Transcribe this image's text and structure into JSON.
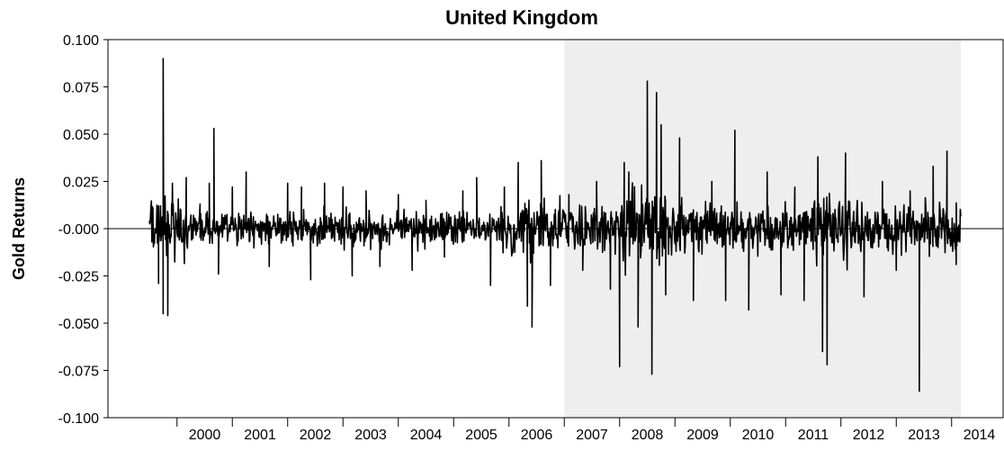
{
  "chart_data": {
    "type": "line",
    "title": "United Kingdom",
    "xlabel": "",
    "ylabel": "Gold Returns",
    "ylim": [
      -0.1,
      0.1
    ],
    "y_ticks": [
      "0.100",
      "0.075",
      "0.050",
      "0.025",
      "-0.000",
      "-0.025",
      "-0.050",
      "-0.075",
      "-0.100"
    ],
    "x_ticks": [
      "2000",
      "2001",
      "2002",
      "2003",
      "2004",
      "2005",
      "2006",
      "2007",
      "2008",
      "2009",
      "2010",
      "2011",
      "2012",
      "2013",
      "2014"
    ],
    "x_range": [
      "1999-07",
      "2014-03"
    ],
    "zero_line": true,
    "shaded_region": {
      "start": "2007-01",
      "end": "2014-03",
      "color": "#eeeeee"
    },
    "series_color": "#000000",
    "series": [
      {
        "x": [
          "1999-09",
          "1999-09",
          "1999-10",
          "1999-10",
          "1999-11",
          "1999-12",
          "2000-03",
          "2000-06",
          "2000-08",
          "2000-09",
          "2000-10",
          "2001-01",
          "2001-04",
          "2001-09",
          "2002-01",
          "2002-04",
          "2002-06",
          "2002-09",
          "2003-01",
          "2003-03",
          "2003-06",
          "2003-09",
          "2004-01",
          "2004-04",
          "2004-07",
          "2004-11",
          "2005-03",
          "2005-06",
          "2005-09",
          "2005-12",
          "2006-03",
          "2006-05",
          "2006-06",
          "2006-08",
          "2006-10",
          "2007-02",
          "2007-05",
          "2007-08",
          "2007-11",
          "2008-01",
          "2008-02",
          "2008-03",
          "2008-05",
          "2008-07",
          "2008-08",
          "2008-09",
          "2008-10",
          "2008-11",
          "2009-02",
          "2009-05",
          "2009-09",
          "2009-12",
          "2010-02",
          "2010-05",
          "2010-09",
          "2010-12",
          "2011-03",
          "2011-05",
          "2011-08",
          "2011-09",
          "2011-10",
          "2012-02",
          "2012-06",
          "2012-10",
          "2013-01",
          "2013-04",
          "2013-06",
          "2013-09",
          "2013-12",
          "2014-02"
        ],
        "values": [
          -0.029,
          0.012,
          -0.045,
          0.09,
          -0.046,
          0.024,
          0.027,
          0.013,
          0.024,
          0.053,
          -0.024,
          0.022,
          0.03,
          -0.02,
          0.024,
          0.022,
          -0.027,
          0.024,
          0.022,
          -0.025,
          0.02,
          -0.02,
          0.018,
          -0.022,
          0.015,
          -0.015,
          0.02,
          0.027,
          -0.03,
          0.022,
          0.035,
          -0.041,
          -0.052,
          0.036,
          -0.03,
          0.018,
          -0.022,
          0.025,
          -0.032,
          -0.073,
          0.035,
          0.03,
          -0.052,
          0.078,
          -0.077,
          0.072,
          0.055,
          -0.035,
          0.048,
          -0.038,
          0.025,
          -0.038,
          0.052,
          -0.043,
          0.03,
          -0.035,
          0.022,
          -0.038,
          0.038,
          -0.065,
          -0.072,
          0.04,
          -0.036,
          0.025,
          -0.022,
          0.02,
          -0.086,
          0.033,
          0.041,
          -0.019
        ]
      }
    ]
  }
}
